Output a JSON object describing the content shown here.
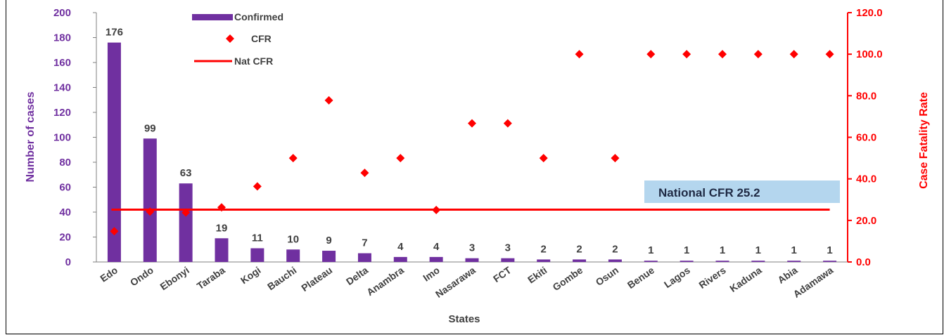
{
  "chart_data": {
    "type": "bar",
    "categories": [
      "Edo",
      "Ondo",
      "Ebonyi",
      "Taraba",
      "Kogi",
      "Bauchi",
      "Plateau",
      "Delta",
      "Anambra",
      "Imo",
      "Nasarawa",
      "FCT",
      "Ekiti",
      "Gombe",
      "Osun",
      "Benue",
      "Lagos",
      "Rivers",
      "Kaduna",
      "Abia",
      "Adamawa"
    ],
    "series": [
      {
        "name": "Confirmed",
        "type": "bar",
        "axis": "left",
        "color": "#7030a0",
        "values": [
          176,
          99,
          63,
          19,
          11,
          10,
          9,
          7,
          4,
          4,
          3,
          3,
          2,
          2,
          2,
          1,
          1,
          1,
          1,
          1,
          1
        ]
      },
      {
        "name": "CFR",
        "type": "scatter",
        "axis": "right",
        "color": "#ff0000",
        "values": [
          14.8,
          24.2,
          23.8,
          26.3,
          36.4,
          50.0,
          77.8,
          42.9,
          50.0,
          25.0,
          66.7,
          66.7,
          50.0,
          100.0,
          50.0,
          100.0,
          100.0,
          100.0,
          100.0,
          100.0,
          100.0
        ]
      },
      {
        "name": "Nat CFR",
        "type": "line",
        "axis": "right",
        "color": "#ff0000",
        "value": 25.2
      }
    ],
    "data_labels": [
      "176",
      "99",
      "63",
      "19",
      "11",
      "10",
      "9",
      "7",
      "4",
      "4",
      "3",
      "3",
      "2",
      "2",
      "2",
      "1",
      "1",
      "1",
      "1",
      "1",
      "1"
    ],
    "xlabel": "States",
    "ylabel": "Number of cases",
    "y2label": "Case Fatality Rate",
    "ylim": [
      0,
      200
    ],
    "y2lim": [
      0,
      120
    ],
    "yticks": [
      "0",
      "20",
      "40",
      "60",
      "80",
      "100",
      "120",
      "140",
      "160",
      "180",
      "200"
    ],
    "y2ticks": [
      "0.0",
      "20.0",
      "40.0",
      "60.0",
      "80.0",
      "100.0",
      "120.0"
    ],
    "annotation": "National CFR 25.2",
    "legend_position": "top-left",
    "grid": false
  }
}
